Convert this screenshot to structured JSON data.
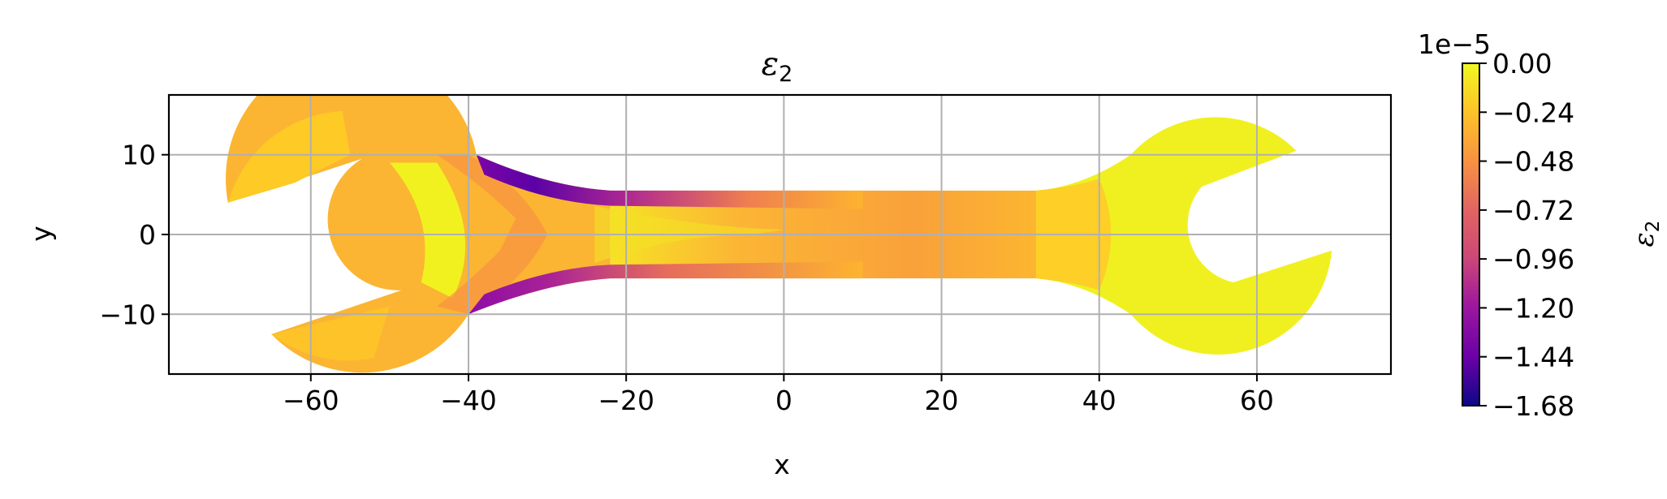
{
  "chart_data": {
    "type": "heatmap",
    "subtype": "filled-contour",
    "title": "ε",
    "title_subscript": "2",
    "xlabel": "x",
    "ylabel": "y",
    "xlim": [
      -78,
      77
    ],
    "ylim": [
      -17.5,
      17.5
    ],
    "x_ticks": [
      -60,
      -40,
      -20,
      0,
      20,
      40,
      60
    ],
    "x_tick_labels": [
      "−60",
      "−40",
      "−20",
      "0",
      "20",
      "40",
      "60"
    ],
    "y_ticks": [
      -10,
      0,
      10
    ],
    "y_tick_labels": [
      "−10",
      "0",
      "10"
    ],
    "grid": true,
    "colormap": "plasma",
    "colorbar": {
      "label": "ε",
      "label_subscript": "2",
      "offset_text": "1e−5",
      "vmin": -1.68,
      "vmax": 0.0,
      "ticks": [
        0.0,
        -0.24,
        -0.48,
        -0.72,
        -0.96,
        -1.2,
        -1.44,
        -1.68
      ],
      "tick_labels": [
        "0.00",
        "−0.24",
        "−0.48",
        "−0.72",
        "−0.96",
        "−1.20",
        "−1.44",
        "−1.68"
      ]
    },
    "contour_levels": [
      0.0,
      -0.08,
      -0.16,
      -0.24,
      -0.32,
      -0.4,
      -0.48,
      -0.56,
      -0.64,
      -0.72,
      -0.8,
      -0.88,
      -0.96,
      -1.04,
      -1.12,
      -1.2,
      -1.28,
      -1.36,
      -1.44,
      -1.52,
      -1.6,
      -1.68
    ],
    "geometry": {
      "handle_half_width": 5.5,
      "handle_x_range": [
        -22,
        32
      ],
      "left_head_center": [
        -55,
        0
      ],
      "left_head_radius": 16,
      "right_head_center": [
        55,
        0
      ],
      "right_head_radius": 14.5
    },
    "colors": {
      "axes_edge": "#000000",
      "grid": "#b0b0b0",
      "background": "#ffffff"
    }
  }
}
